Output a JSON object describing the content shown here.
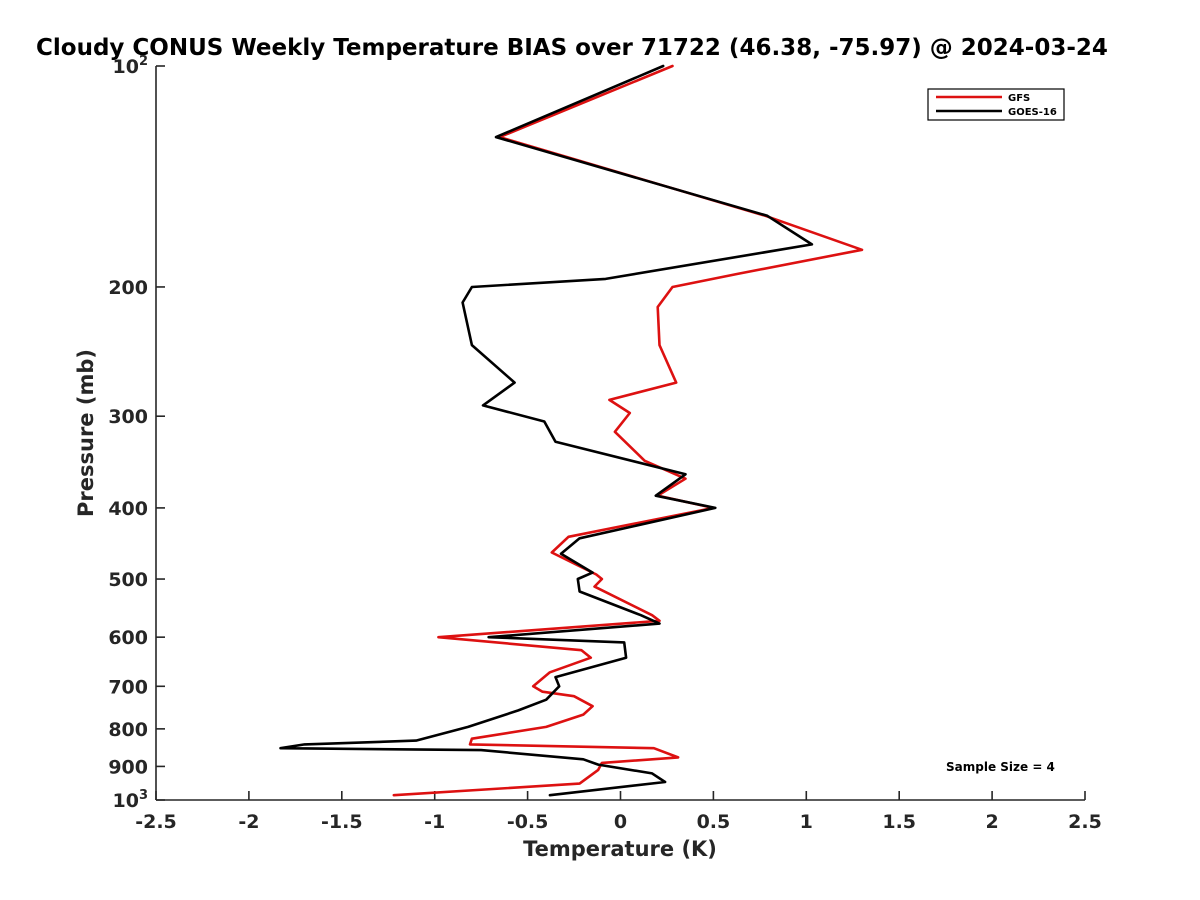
{
  "chart_data": {
    "type": "line",
    "title": "Cloudy CONUS Weekly Temperature BIAS over 71722 (46.38, -75.97) @ 2024-03-24",
    "xlabel": "Temperature (K)",
    "ylabel": "Pressure (mb)",
    "xlim": [
      -2.5,
      2.5
    ],
    "ylim": [
      100,
      1000
    ],
    "y_scale": "log",
    "y_reversed": true,
    "grid": false,
    "legend_position": "top-right",
    "x_ticks": [
      "-2.5",
      "-2",
      "-1.5",
      "-1",
      "-0.5",
      "0",
      "0.5",
      "1",
      "1.5",
      "2",
      "2.5"
    ],
    "x_tick_values": [
      -2.5,
      -2,
      -1.5,
      -1,
      -0.5,
      0,
      0.5,
      1,
      1.5,
      2,
      2.5
    ],
    "y_ticks": [
      {
        "value": 100,
        "base": "10",
        "exp": "2"
      },
      {
        "value": 200,
        "label": "200"
      },
      {
        "value": 300,
        "label": "300"
      },
      {
        "value": 400,
        "label": "400"
      },
      {
        "value": 500,
        "label": "500"
      },
      {
        "value": 600,
        "label": "600"
      },
      {
        "value": 700,
        "label": "700"
      },
      {
        "value": 800,
        "label": "800"
      },
      {
        "value": 900,
        "label": "900"
      },
      {
        "value": 1000,
        "base": "10",
        "exp": "3"
      }
    ],
    "annotation": "Sample Size = 4",
    "series": [
      {
        "name": "GFS",
        "color": "#dd1111",
        "x": [
          0.28,
          -0.65,
          0.78,
          1.3,
          0.63,
          0.28,
          0.2,
          0.21,
          0.3,
          -0.06,
          0.05,
          -0.03,
          0.13,
          0.35,
          0.2,
          0.5,
          -0.28,
          -0.37,
          -0.13,
          -0.1,
          -0.14,
          0.17,
          0.21,
          -0.98,
          -0.21,
          -0.16,
          -0.38,
          -0.47,
          -0.42,
          -0.25,
          -0.15,
          -0.2,
          -0.4,
          -0.8,
          -0.81,
          0.18,
          0.31,
          -0.1,
          -0.12,
          -0.22,
          -1.22
        ],
        "y": [
          100,
          125,
          160,
          178,
          192,
          200,
          213,
          240,
          270,
          285,
          297,
          315,
          345,
          365,
          385,
          400,
          438,
          460,
          493,
          500,
          512,
          560,
          570,
          600,
          625,
          640,
          670,
          700,
          712,
          722,
          745,
          765,
          795,
          825,
          840,
          850,
          875,
          890,
          910,
          950,
          985
        ]
      },
      {
        "name": "GOES-16",
        "color": "#000000",
        "x": [
          0.23,
          -0.67,
          0.79,
          1.03,
          -0.08,
          -0.8,
          -0.85,
          -0.8,
          -0.57,
          -0.74,
          -0.41,
          -0.35,
          0.35,
          0.19,
          0.51,
          -0.22,
          -0.32,
          -0.15,
          -0.23,
          -0.22,
          0.11,
          0.21,
          -0.71,
          0.02,
          0.03,
          -0.35,
          -0.33,
          -0.4,
          -0.55,
          -0.82,
          -1.1,
          -1.7,
          -1.83,
          -0.75,
          -0.2,
          -0.12,
          0.17,
          0.24,
          -0.38
        ],
        "y": [
          100,
          125,
          160,
          175,
          195,
          200,
          210,
          240,
          270,
          290,
          305,
          325,
          360,
          385,
          400,
          440,
          462,
          490,
          500,
          520,
          560,
          575,
          600,
          610,
          640,
          680,
          700,
          730,
          755,
          795,
          830,
          840,
          850,
          855,
          880,
          895,
          920,
          945,
          985
        ]
      }
    ]
  }
}
